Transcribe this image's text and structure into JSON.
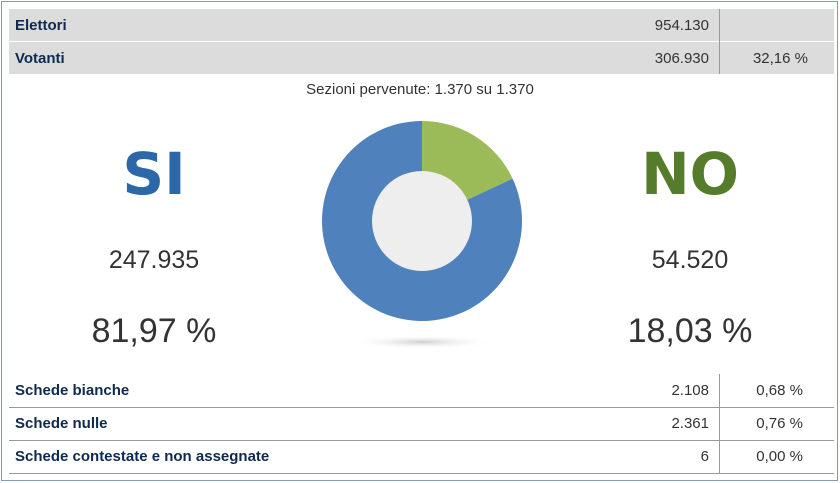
{
  "summary": {
    "elettori": {
      "label": "Elettori",
      "value": "954.130"
    },
    "votanti": {
      "label": "Votanti",
      "value": "306.930",
      "percent": "32,16 %"
    }
  },
  "sezioni_text": "Sezioni pervenute: 1.370 su 1.370",
  "si": {
    "label": "SI",
    "votes": "247.935",
    "percent": "81,97 %"
  },
  "no": {
    "label": "NO",
    "votes": "54.520",
    "percent": "18,03 %"
  },
  "chart_data": {
    "type": "pie",
    "categories": [
      "SI",
      "NO"
    ],
    "values": [
      81.97,
      18.03
    ],
    "colors": [
      "#4f81bd",
      "#9bbb59"
    ],
    "hole_color": "#eeeeee"
  },
  "details": [
    {
      "label": "Schede bianche",
      "value": "2.108",
      "percent": "0,68 %"
    },
    {
      "label": "Schede nulle",
      "value": "2.361",
      "percent": "0,76 %"
    },
    {
      "label": "Schede contestate e non assegnate",
      "value": "6",
      "percent": "0,00 %"
    }
  ]
}
